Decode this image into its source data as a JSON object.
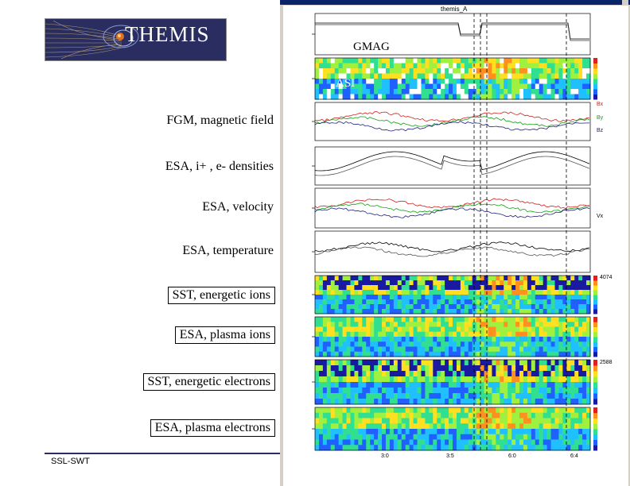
{
  "logo": {
    "text": "THEMIS"
  },
  "left_labels": [
    {
      "text": "FGM, magnetic field",
      "boxed": false
    },
    {
      "text": "ESA, i+ , e- densities",
      "boxed": false
    },
    {
      "text": "ESA, velocity",
      "boxed": false
    },
    {
      "text": "ESA, temperature",
      "boxed": false
    },
    {
      "text": "SST, energetic ions",
      "boxed": true
    },
    {
      "text": "ESA, plasma ions",
      "boxed": true
    },
    {
      "text": "SST, energetic electrons",
      "boxed": true
    },
    {
      "text": "ESA, plasma electrons",
      "boxed": true
    }
  ],
  "footer": {
    "text": "SSL-SWT"
  },
  "plot": {
    "title": "themis_A",
    "overlays": {
      "gmag": "GMAG",
      "asi": "ASI"
    },
    "fgm_components": [
      "Bx",
      "By",
      "Bz"
    ],
    "velocity_component": "Vx",
    "colorbar_max": [
      "4074",
      "2588"
    ],
    "time_ticks": [
      "3:0",
      "3:5",
      "6:0",
      "6:4"
    ],
    "colors": {
      "bx": "#d02020",
      "by": "#10a010",
      "bz": "#202080",
      "window_frame": "#d4d0c8",
      "titlebar": "#0a246a",
      "logo_bg": "#2a2d60"
    }
  }
}
